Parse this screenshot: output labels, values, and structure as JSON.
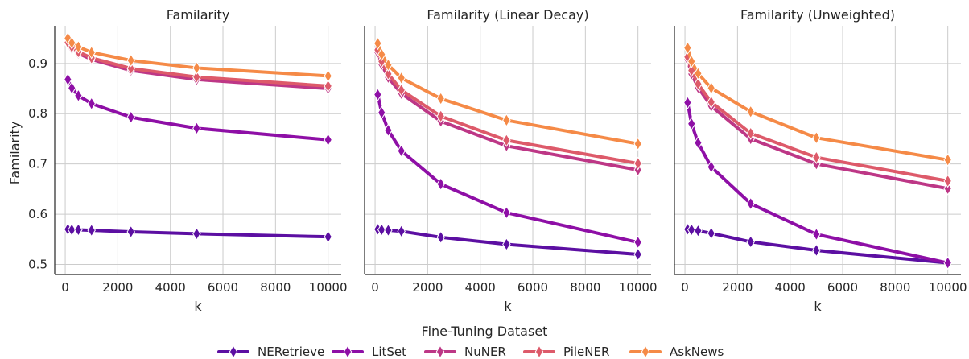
{
  "chart_data": {
    "type": "line",
    "ylabel": "Familarity",
    "legend_title": "Fine-Tuning Dataset",
    "legend_placement": "bottom-center",
    "grid": true,
    "x": [
      100,
      250,
      500,
      1000,
      2500,
      5000,
      10000
    ],
    "xlim": [
      -400,
      10500
    ],
    "ylim": [
      0.48,
      0.975
    ],
    "xticks": [
      0,
      2000,
      4000,
      6000,
      8000,
      10000
    ],
    "xtick_labels": [
      "0",
      "2000",
      "4000",
      "6000",
      "8000",
      "10000"
    ],
    "yticks": [
      0.5,
      0.6,
      0.7,
      0.8,
      0.9
    ],
    "ytick_labels": [
      "0.5",
      "0.6",
      "0.7",
      "0.8",
      "0.9"
    ],
    "colors": [
      "#5c0fa2",
      "#8e0fa6",
      "#bd3786",
      "#dd5a6a",
      "#f58a47"
    ],
    "panels": [
      {
        "title": "Familarity",
        "xlabel": "k",
        "series": [
          {
            "name": "NERetrieve",
            "values": [
              0.57,
              0.569,
              0.569,
              0.568,
              0.565,
              0.561,
              0.555
            ]
          },
          {
            "name": "LitSet",
            "values": [
              0.868,
              0.851,
              0.836,
              0.82,
              0.793,
              0.771,
              0.748
            ]
          },
          {
            "name": "NuNER",
            "values": [
              0.94,
              0.93,
              0.92,
              0.908,
              0.886,
              0.868,
              0.85
            ]
          },
          {
            "name": "PileNER",
            "values": [
              0.942,
              0.933,
              0.923,
              0.911,
              0.89,
              0.873,
              0.855
            ]
          },
          {
            "name": "AskNews",
            "values": [
              0.95,
              0.941,
              0.933,
              0.922,
              0.906,
              0.891,
              0.875
            ]
          }
        ]
      },
      {
        "title": "Familarity (Linear Decay)",
        "xlabel": "k",
        "series": [
          {
            "name": "NERetrieve",
            "values": [
              0.57,
              0.569,
              0.568,
              0.566,
              0.554,
              0.54,
              0.52
            ]
          },
          {
            "name": "LitSet",
            "values": [
              0.838,
              0.802,
              0.767,
              0.726,
              0.66,
              0.603,
              0.544
            ]
          },
          {
            "name": "NuNER",
            "values": [
              0.922,
              0.898,
              0.872,
              0.84,
              0.785,
              0.736,
              0.688
            ]
          },
          {
            "name": "PileNER",
            "values": [
              0.927,
              0.904,
              0.879,
              0.847,
              0.795,
              0.747,
              0.701
            ]
          },
          {
            "name": "AskNews",
            "values": [
              0.94,
              0.918,
              0.897,
              0.871,
              0.83,
              0.787,
              0.74
            ]
          }
        ]
      },
      {
        "title": "Familarity (Unweighted)",
        "xlabel": "k",
        "series": [
          {
            "name": "NERetrieve",
            "values": [
              0.57,
              0.569,
              0.567,
              0.562,
              0.545,
              0.528,
              0.503
            ]
          },
          {
            "name": "LitSet",
            "values": [
              0.822,
              0.78,
              0.742,
              0.694,
              0.621,
              0.56,
              0.503
            ]
          },
          {
            "name": "NuNER",
            "values": [
              0.908,
              0.879,
              0.852,
              0.815,
              0.75,
              0.7,
              0.651
            ]
          },
          {
            "name": "PileNER",
            "values": [
              0.913,
              0.886,
              0.859,
              0.823,
              0.761,
              0.713,
              0.666
            ]
          },
          {
            "name": "AskNews",
            "values": [
              0.931,
              0.904,
              0.88,
              0.851,
              0.804,
              0.752,
              0.708
            ]
          }
        ]
      }
    ]
  }
}
